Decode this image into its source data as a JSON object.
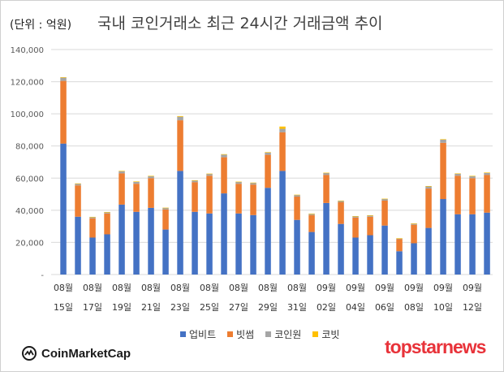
{
  "header": {
    "unit_label": "(단위 : 억원)",
    "title": "국내 코인거래소 최근 24시간 거래금액 추이"
  },
  "branding": {
    "left_logo_text": "CoinMarketCap",
    "right_logo_text": "topstarnews"
  },
  "colors": {
    "upbit": "#4472c4",
    "bithumb": "#ed7d31",
    "coinone": "#a5a5a5",
    "korbit": "#ffc000",
    "grid": "#d9d9d9",
    "axis_text": "#595959"
  },
  "chart_data": {
    "type": "bar",
    "stacked": true,
    "title": "국내 코인거래소 최근 24시간 거래금액 추이",
    "ylabel": "(단위 : 억원)",
    "ylim": [
      0,
      140000
    ],
    "yticks": [
      "-",
      "20,000",
      "40,000",
      "60,000",
      "80,000",
      "100,000",
      "120,000",
      "140,000"
    ],
    "grid": true,
    "legend_position": "bottom",
    "x_tick_labels": [
      {
        "month": "08월",
        "day": "15일"
      },
      {
        "month": "08월",
        "day": "17일"
      },
      {
        "month": "08월",
        "day": "19일"
      },
      {
        "month": "08월",
        "day": "21일"
      },
      {
        "month": "08월",
        "day": "23일"
      },
      {
        "month": "08월",
        "day": "25일"
      },
      {
        "month": "08월",
        "day": "27일"
      },
      {
        "month": "08월",
        "day": "29일"
      },
      {
        "month": "08월",
        "day": "31일"
      },
      {
        "month": "09월",
        "day": "02일"
      },
      {
        "month": "09월",
        "day": "04일"
      },
      {
        "month": "09월",
        "day": "06일"
      },
      {
        "month": "09월",
        "day": "08일"
      },
      {
        "month": "09월",
        "day": "10일"
      },
      {
        "month": "09월",
        "day": "12일"
      }
    ],
    "series": [
      {
        "name": "업비트",
        "values": [
          81500,
          36000,
          23000,
          25000,
          43500,
          39000,
          41500,
          28000,
          64500,
          39000,
          38000,
          50500,
          38000,
          37000,
          54000,
          64500,
          34000,
          26500,
          44500,
          31500,
          23000,
          24500,
          30500,
          14500,
          19500,
          29000,
          47000,
          37500,
          37500,
          38500
        ]
      },
      {
        "name": "빗썸",
        "values": [
          39000,
          19500,
          12000,
          13000,
          19500,
          17500,
          18500,
          12500,
          31500,
          18500,
          23500,
          22500,
          18500,
          19000,
          20500,
          24000,
          14500,
          10500,
          17500,
          13500,
          12500,
          11500,
          15500,
          7500,
          11500,
          24500,
          35000,
          24000,
          22500,
          23500
        ]
      },
      {
        "name": "코인원",
        "values": [
          2000,
          1000,
          800,
          800,
          1300,
          1200,
          1200,
          1000,
          2200,
          1000,
          1100,
          1600,
          1100,
          1000,
          1400,
          2200,
          1000,
          800,
          1200,
          900,
          800,
          800,
          1000,
          500,
          700,
          1400,
          1900,
          1200,
          1200,
          1300
        ]
      },
      {
        "name": "코빗",
        "values": [
          300,
          200,
          100,
          100,
          200,
          200,
          200,
          100,
          400,
          200,
          200,
          300,
          200,
          200,
          300,
          1400,
          200,
          100,
          200,
          100,
          100,
          100,
          200,
          100,
          100,
          200,
          300,
          200,
          200,
          200
        ]
      }
    ]
  }
}
